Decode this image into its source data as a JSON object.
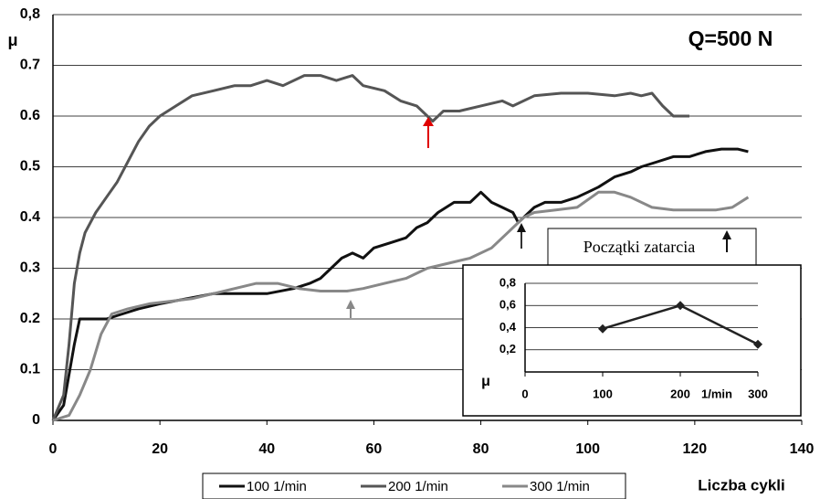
{
  "chart_data": [
    {
      "type": "line",
      "title": "Q=500 N",
      "y_label": "μ",
      "x_label": "Liczba cykli",
      "annotation": "Początki zatarcia",
      "xlim": [
        0,
        140
      ],
      "xticks": [
        0,
        20,
        40,
        60,
        80,
        100,
        120,
        140
      ],
      "ylim": [
        0,
        0.8
      ],
      "yticks": [
        0,
        0.1,
        0.2,
        0.3,
        0.4,
        0.5,
        0.6,
        0.7,
        {
          "value": 0.8,
          "label": "0,8"
        }
      ],
      "grid": true,
      "series": [
        {
          "name": "100 1/min",
          "color": "#111111",
          "x": [
            0,
            2,
            4,
            5,
            7,
            10,
            13,
            16,
            20,
            25,
            30,
            35,
            40,
            45,
            48,
            50,
            52,
            54,
            56,
            58,
            60,
            63,
            66,
            68,
            70,
            72,
            75,
            78,
            80,
            82,
            84,
            86,
            87,
            88,
            90,
            92,
            95,
            98,
            100,
            102,
            105,
            108,
            110,
            113,
            116,
            119,
            122,
            125,
            128,
            130
          ],
          "values": [
            0,
            0.03,
            0.15,
            0.2,
            0.2,
            0.2,
            0.21,
            0.22,
            0.23,
            0.24,
            0.25,
            0.25,
            0.25,
            0.26,
            0.27,
            0.28,
            0.3,
            0.32,
            0.33,
            0.32,
            0.34,
            0.35,
            0.36,
            0.38,
            0.39,
            0.41,
            0.43,
            0.43,
            0.45,
            0.43,
            0.42,
            0.41,
            0.39,
            0.4,
            0.42,
            0.43,
            0.43,
            0.44,
            0.45,
            0.46,
            0.48,
            0.49,
            0.5,
            0.51,
            0.52,
            0.52,
            0.53,
            0.535,
            0.535,
            0.53
          ]
        },
        {
          "name": "200 1/min",
          "color": "#555555",
          "x": [
            0,
            2,
            3,
            4,
            5,
            6,
            8,
            10,
            12,
            14,
            16,
            18,
            20,
            23,
            26,
            30,
            34,
            37,
            40,
            43,
            47,
            50,
            53,
            56,
            58,
            62,
            65,
            68,
            70,
            71,
            73,
            76,
            80,
            84,
            86,
            90,
            95,
            100,
            105,
            108,
            110,
            112,
            114,
            116,
            119
          ],
          "values": [
            0,
            0.05,
            0.15,
            0.27,
            0.33,
            0.37,
            0.41,
            0.44,
            0.47,
            0.51,
            0.55,
            0.58,
            0.6,
            0.62,
            0.64,
            0.65,
            0.66,
            0.66,
            0.67,
            0.66,
            0.68,
            0.68,
            0.67,
            0.68,
            0.66,
            0.65,
            0.63,
            0.62,
            0.6,
            0.59,
            0.61,
            0.61,
            0.62,
            0.63,
            0.62,
            0.64,
            0.645,
            0.645,
            0.64,
            0.645,
            0.64,
            0.645,
            0.62,
            0.6,
            0.6
          ]
        },
        {
          "name": "300 1/min",
          "color": "#888888",
          "x": [
            0,
            3,
            5,
            7,
            9,
            11,
            14,
            18,
            22,
            26,
            30,
            34,
            38,
            42,
            46,
            50,
            55,
            58,
            62,
            66,
            70,
            74,
            78,
            82,
            85,
            88,
            90,
            94,
            98,
            102,
            105,
            108,
            112,
            116,
            120,
            124,
            127,
            130
          ],
          "values": [
            0,
            0.01,
            0.05,
            0.1,
            0.17,
            0.21,
            0.22,
            0.23,
            0.235,
            0.24,
            0.25,
            0.26,
            0.27,
            0.27,
            0.26,
            0.255,
            0.255,
            0.26,
            0.27,
            0.28,
            0.3,
            0.31,
            0.32,
            0.34,
            0.37,
            0.4,
            0.41,
            0.415,
            0.42,
            0.45,
            0.45,
            0.44,
            0.42,
            0.415,
            0.415,
            0.415,
            0.42,
            0.44
          ]
        }
      ]
    },
    {
      "type": "line",
      "y_label": "μ",
      "x_unit": "1/min",
      "xlim": [
        0,
        300
      ],
      "xticks": [
        0,
        100,
        200,
        300
      ],
      "ylim": [
        0,
        0.8
      ],
      "yticks": [
        {
          "value": 0.2,
          "label": "0,2"
        },
        {
          "value": 0.4,
          "label": "0,4"
        },
        {
          "value": 0.6,
          "label": "0,6"
        },
        {
          "value": 0.8,
          "label": "0,8"
        }
      ],
      "grid": true,
      "series": [
        {
          "name": null,
          "color": "#222222",
          "x": [
            100,
            200,
            300
          ],
          "values": [
            0.39,
            0.6,
            0.25
          ]
        }
      ]
    }
  ]
}
